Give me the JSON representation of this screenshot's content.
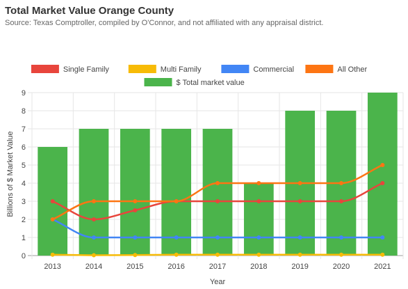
{
  "header": {
    "title": "Total Market Value Orange County",
    "subtitle": "Source: Texas Comptroller, compiled by O'Connor, and not affiliated with any appraisal district."
  },
  "chart_data": {
    "type": "bar",
    "title": "Total Market Value Orange County",
    "subtitle": "Source: Texas Comptroller, compiled by O'Connor, and not affiliated with any appraisal district.",
    "xlabel": "Year",
    "ylabel": "Billions of $ Market Value",
    "ylim": [
      0,
      9
    ],
    "yticks": [
      0,
      1,
      2,
      3,
      4,
      5,
      6,
      7,
      8,
      9
    ],
    "grid": true,
    "legend_position": "top",
    "categories": [
      "2013",
      "2014",
      "2015",
      "2016",
      "2017",
      "2018",
      "2019",
      "2020",
      "2021"
    ],
    "series": [
      {
        "name": "Single Family",
        "type": "line",
        "color": "#e8453c",
        "values": [
          3,
          2,
          2.5,
          3,
          3,
          3,
          3,
          3,
          4
        ]
      },
      {
        "name": "Multi Family",
        "type": "line",
        "color": "#f7bb07",
        "values": [
          0.05,
          0.02,
          0.03,
          0.05,
          0.05,
          0.05,
          0.05,
          0.05,
          0.05
        ]
      },
      {
        "name": "Commercial",
        "type": "line",
        "color": "#4286f5",
        "values": [
          2,
          1,
          1,
          1,
          1,
          1,
          1,
          1,
          1
        ]
      },
      {
        "name": "All Other",
        "type": "line",
        "color": "#fd7513",
        "values": [
          2,
          3,
          3,
          3,
          4,
          4,
          4,
          4,
          5
        ]
      },
      {
        "name": "$ Total market value",
        "type": "bar",
        "color": "#4bb44b",
        "values": [
          6,
          7,
          7,
          7,
          7,
          4,
          8,
          8,
          9
        ]
      }
    ]
  }
}
